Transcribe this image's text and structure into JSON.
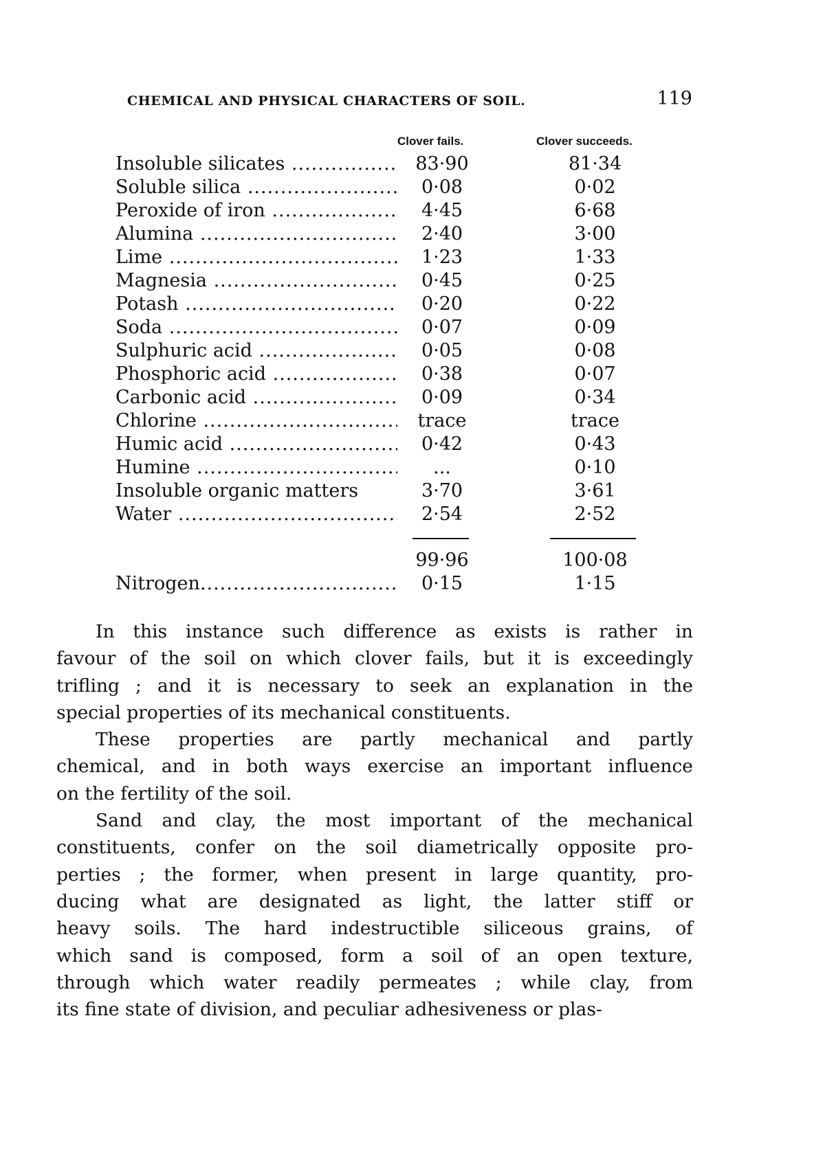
{
  "header": {
    "running_title": "CHEMICAL AND PHYSICAL CHARACTERS OF SOIL.",
    "page_number": "119"
  },
  "table": {
    "columns": [
      "Clover fails.",
      "Clover succeeds."
    ],
    "rows": [
      {
        "label": "Insoluble silicates",
        "dots": true,
        "fails": "83·90",
        "succeeds": "81·34"
      },
      {
        "label": "Soluble silica",
        "dots": true,
        "fails": "0·08",
        "succeeds": "0·02"
      },
      {
        "label": "Peroxide of iron",
        "dots": true,
        "fails": "4·45",
        "succeeds": "6·68"
      },
      {
        "label": "Alumina",
        "dots": true,
        "fails": "2·40",
        "succeeds": "3·00"
      },
      {
        "label": "Lime",
        "dots": true,
        "fails": "1·23",
        "succeeds": "1·33"
      },
      {
        "label": "Magnesia",
        "dots": true,
        "fails": "0·45",
        "succeeds": "0·25"
      },
      {
        "label": "Potash",
        "dots": true,
        "fails": "0·20",
        "succeeds": "0·22"
      },
      {
        "label": "Soda",
        "dots": true,
        "fails": "0·07",
        "succeeds": "0·09"
      },
      {
        "label": "Sulphuric acid",
        "dots": true,
        "fails": "0·05",
        "succeeds": "0·08"
      },
      {
        "label": "Phosphoric acid",
        "dots": true,
        "fails": "0·38",
        "succeeds": "0·07"
      },
      {
        "label": "Carbonic acid",
        "dots": true,
        "fails": "0·09",
        "succeeds": "0·34"
      },
      {
        "label": "Chlorine",
        "dots": true,
        "fails": "trace",
        "succeeds": "trace"
      },
      {
        "label": "Humic acid",
        "dots": true,
        "fails": "0·42",
        "succeeds": "0·43"
      },
      {
        "label": "Humine",
        "dots": true,
        "fails": "...",
        "succeeds": "0·10"
      },
      {
        "label": "Insoluble organic matters",
        "dots": false,
        "fails": "3·70",
        "succeeds": "3·61"
      },
      {
        "label": "Water",
        "dots": true,
        "fails": "2·54",
        "succeeds": "2·52"
      }
    ],
    "totals": {
      "fails": "99·96",
      "succeeds": "100·08"
    },
    "nitrogen": {
      "label": "Nitrogen",
      "fails": "0·15",
      "succeeds": "1·15"
    }
  },
  "paragraphs": [
    [
      "In this instance such difference as exists is rather in",
      "favour of the soil on which clover fails, but it is exceedingly",
      "trifling ; and it is necessary to seek an explanation in the",
      "special properties of its mechanical constituents."
    ],
    [
      "These properties are partly mechanical and partly",
      "chemical, and in both ways exercise an important influence",
      "on the fertility of the soil."
    ],
    [
      "Sand and clay, the most important of the mechanical",
      "constituents, confer on the soil diametrically opposite pro-",
      "perties ; the former, when present in large quantity, pro-",
      "ducing what are designated as light, the latter stiff or",
      "heavy soils. The hard indestructible siliceous grains, of",
      "which sand is composed, form a soil of an open texture,",
      "through which water readily permeates ; while clay, from",
      "its fine state of division, and peculiar adhesiveness or plas-"
    ]
  ]
}
